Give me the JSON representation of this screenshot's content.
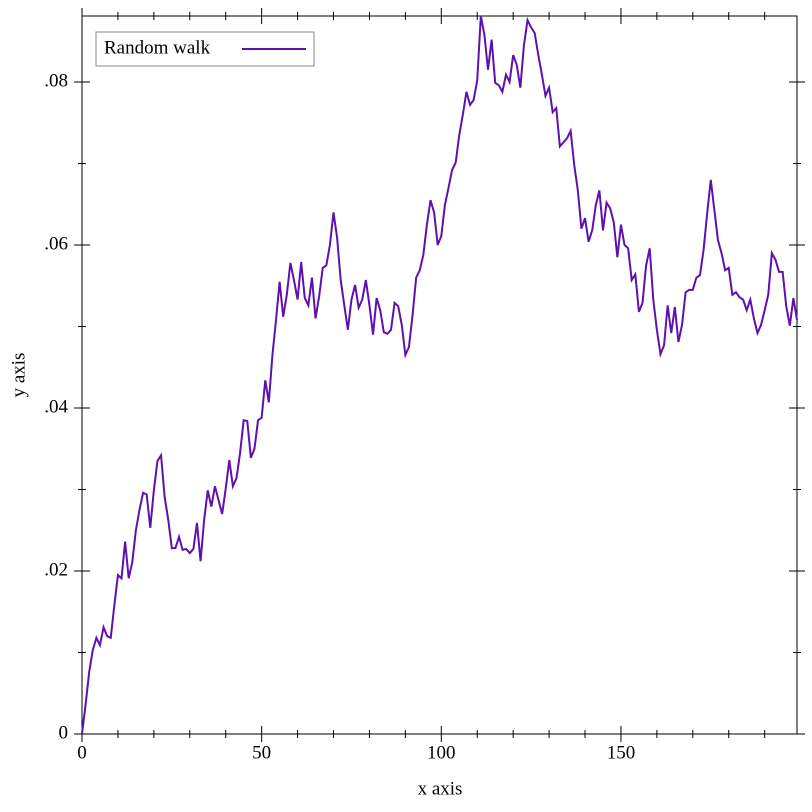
{
  "chart_data": {
    "type": "line",
    "xlabel": "x axis",
    "ylabel": "y axis",
    "x": [
      0,
      1,
      2,
      3,
      4,
      5,
      6,
      7,
      8,
      9,
      10,
      11,
      12,
      13,
      14,
      15,
      16,
      17,
      18,
      19,
      20,
      21,
      22,
      23,
      24,
      25,
      26,
      27,
      28,
      29,
      30,
      31,
      32,
      33,
      34,
      35,
      36,
      37,
      38,
      39,
      40,
      41,
      42,
      43,
      44,
      45,
      46,
      47,
      48,
      49,
      50,
      51,
      52,
      53,
      54,
      55,
      56,
      57,
      58,
      59,
      60,
      61,
      62,
      63,
      64,
      65,
      66,
      67,
      68,
      69,
      70,
      71,
      72,
      73,
      74,
      75,
      76,
      77,
      78,
      79,
      80,
      81,
      82,
      83,
      84,
      85,
      86,
      87,
      88,
      89,
      90,
      91,
      92,
      93,
      94,
      95,
      96,
      97,
      98,
      99,
      100,
      101,
      102,
      103,
      104,
      105,
      106,
      107,
      108,
      109,
      110,
      111,
      112,
      113,
      114,
      115,
      116,
      117,
      118,
      119,
      120,
      121,
      122,
      123,
      124,
      125,
      126,
      127,
      128,
      129,
      130,
      131,
      132,
      133,
      134,
      135,
      136,
      137,
      138,
      139,
      140,
      141,
      142,
      143,
      144,
      145,
      146,
      147,
      148,
      149,
      150,
      151,
      152,
      153,
      154,
      155,
      156,
      157,
      158,
      159,
      160,
      161,
      162,
      163,
      164,
      165,
      166,
      167,
      168,
      169,
      170,
      171,
      172,
      173,
      174,
      175,
      176,
      177,
      178,
      179,
      180,
      181,
      182,
      183,
      184,
      185,
      186,
      187,
      188,
      189,
      190,
      191,
      192,
      193,
      194,
      195,
      196,
      197,
      198,
      199
    ],
    "series": [
      {
        "name": "Random walk",
        "color": "#5f10b0",
        "values": [
          0,
          0.0036,
          0.0076,
          0.0103,
          0.0118,
          0.0109,
          0.0131,
          0.012,
          0.0118,
          0.0158,
          0.0195,
          0.0191,
          0.0236,
          0.0191,
          0.0211,
          0.025,
          0.0275,
          0.0296,
          0.0294,
          0.0253,
          0.0299,
          0.0335,
          0.0342,
          0.0291,
          0.0263,
          0.0228,
          0.0228,
          0.0242,
          0.0226,
          0.0227,
          0.0222,
          0.0227,
          0.0259,
          0.0212,
          0.0263,
          0.0299,
          0.0279,
          0.0304,
          0.0287,
          0.027,
          0.0301,
          0.0336,
          0.0304,
          0.0314,
          0.0345,
          0.0385,
          0.0384,
          0.0339,
          0.035,
          0.0385,
          0.0388,
          0.0434,
          0.0407,
          0.0465,
          0.0508,
          0.0555,
          0.0512,
          0.0539,
          0.0578,
          0.0557,
          0.0533,
          0.0579,
          0.0535,
          0.0526,
          0.056,
          0.051,
          0.0537,
          0.0572,
          0.0575,
          0.06,
          0.064,
          0.0609,
          0.0557,
          0.0526,
          0.0496,
          0.0533,
          0.0551,
          0.0523,
          0.0533,
          0.0557,
          0.0526,
          0.049,
          0.0535,
          0.052,
          0.0493,
          0.0491,
          0.0496,
          0.0529,
          0.0525,
          0.0502,
          0.0465,
          0.0475,
          0.0514,
          0.056,
          0.0569,
          0.0588,
          0.0625,
          0.0655,
          0.064,
          0.06,
          0.0611,
          0.0649,
          0.067,
          0.0692,
          0.0701,
          0.0735,
          0.076,
          0.0788,
          0.0772,
          0.0778,
          0.0802,
          0.0881,
          0.0858,
          0.0815,
          0.0852,
          0.0799,
          0.0796,
          0.0788,
          0.0809,
          0.08,
          0.0833,
          0.0821,
          0.0793,
          0.0845,
          0.0876,
          0.0867,
          0.086,
          0.0833,
          0.0809,
          0.0783,
          0.0793,
          0.0763,
          0.0768,
          0.0721,
          0.0726,
          0.0731,
          0.074,
          0.0698,
          0.0667,
          0.062,
          0.0633,
          0.0604,
          0.0618,
          0.0649,
          0.0667,
          0.0618,
          0.0652,
          0.0645,
          0.0628,
          0.0585,
          0.0625,
          0.06,
          0.0596,
          0.0557,
          0.0564,
          0.0518,
          0.0529,
          0.0575,
          0.0596,
          0.0533,
          0.0496,
          0.0466,
          0.0477,
          0.0526,
          0.0492,
          0.0524,
          0.0481,
          0.0502,
          0.0542,
          0.0545,
          0.0545,
          0.056,
          0.0563,
          0.0594,
          0.0639,
          0.068,
          0.0643,
          0.0606,
          0.059,
          0.0569,
          0.0572,
          0.0539,
          0.0542,
          0.0536,
          0.0533,
          0.052,
          0.0533,
          0.051,
          0.0492,
          0.0502,
          0.052,
          0.0539,
          0.059,
          0.0582,
          0.0567,
          0.0567,
          0.0525,
          0.0501,
          0.0535,
          0.0508
        ]
      }
    ],
    "xlim": [
      0,
      199
    ],
    "ylim": [
      0,
      0.0881
    ],
    "xticks": [
      0,
      50,
      100,
      150
    ],
    "yticks": [
      0,
      {
        "value": 0.02,
        "label": ".02"
      },
      {
        "value": 0.04,
        "label": ".04"
      },
      {
        "value": 0.06,
        "label": ".06"
      },
      {
        "value": 0.08,
        "label": ".08"
      }
    ],
    "xticks_minor": [
      10,
      20,
      30,
      40,
      60,
      70,
      80,
      90,
      110,
      120,
      130,
      140,
      160,
      170,
      180,
      190
    ],
    "yticks_minor": [
      0.01,
      0.03,
      0.05,
      0.07
    ],
    "legend": "top-left"
  }
}
